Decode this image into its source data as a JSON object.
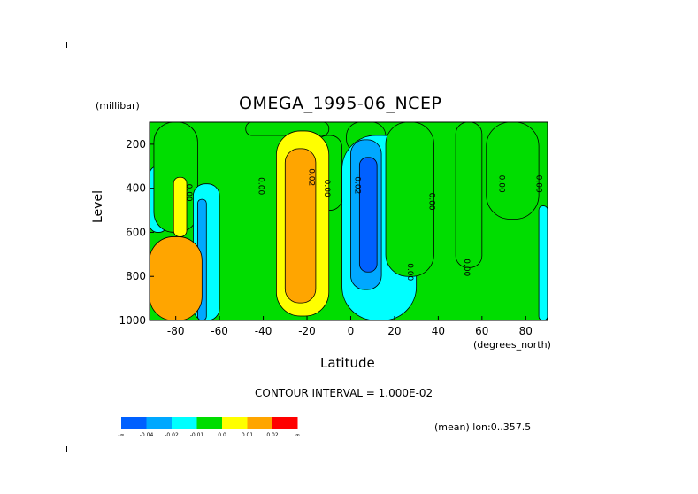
{
  "title": "OMEGA_1995-06_NCEP",
  "y_unit": "(millibar)",
  "y_label": "Level",
  "x_label": "Latitude",
  "x_unit": "(degrees_north)",
  "contour_interval": "CONTOUR INTERVAL = 1.000E-02",
  "mean_note": "(mean) lon:0..357.5",
  "colorbar": {
    "colors": [
      "#0060ff",
      "#00a8ff",
      "#00ffff",
      "#00dd00",
      "#ffff00",
      "#ffa500",
      "#ff0000"
    ],
    "labels": [
      "-∞",
      "-0.04",
      "-0.02",
      "-0.01",
      "0.0",
      "0.01",
      "0.02",
      "∞"
    ]
  },
  "chart_data": {
    "type": "heatmap",
    "title": "OMEGA_1995-06_NCEP",
    "xlabel": "Latitude",
    "ylabel": "Level",
    "xlim": [
      -92,
      90
    ],
    "ylim": [
      1000,
      100
    ],
    "x_ticks": [
      -80,
      -60,
      -40,
      -20,
      0,
      20,
      40,
      60,
      80
    ],
    "y_ticks": [
      200,
      400,
      600,
      800,
      1000
    ],
    "background_level": "0.0",
    "regions": [
      {
        "level": "-0.01",
        "x": [
          -92,
          -84
        ],
        "y": [
          300,
          600
        ]
      },
      {
        "level": "0.0",
        "x": [
          -90,
          -70
        ],
        "y": [
          100,
          600
        ]
      },
      {
        "level": "0.01",
        "x": [
          -81,
          -75
        ],
        "y": [
          350,
          620
        ]
      },
      {
        "level": "-0.01",
        "x": [
          -72,
          -60
        ],
        "y": [
          380,
          1000
        ]
      },
      {
        "level": "-0.02",
        "x": [
          -70,
          -66
        ],
        "y": [
          450,
          1000
        ]
      },
      {
        "level": "0.0",
        "x": [
          -48,
          -10
        ],
        "y": [
          100,
          160
        ]
      },
      {
        "level": "0.0",
        "x": [
          -16,
          -4
        ],
        "y": [
          160,
          500
        ]
      },
      {
        "level": "0.01",
        "x": [
          -34,
          -10
        ],
        "y": [
          140,
          980
        ]
      },
      {
        "level": "0.02",
        "x": [
          -30,
          -16
        ],
        "y": [
          220,
          920
        ]
      },
      {
        "level": "0.0",
        "x": [
          -2,
          16
        ],
        "y": [
          100,
          240
        ]
      },
      {
        "level": "-0.01",
        "x": [
          -4,
          30
        ],
        "y": [
          160,
          1000
        ]
      },
      {
        "level": "-0.02",
        "x": [
          0,
          14
        ],
        "y": [
          180,
          860
        ]
      },
      {
        "level": "-0.04",
        "x": [
          4,
          12
        ],
        "y": [
          260,
          780
        ]
      },
      {
        "level": "0.0",
        "x": [
          16,
          38
        ],
        "y": [
          100,
          800
        ]
      },
      {
        "level": "0.0",
        "x": [
          48,
          60
        ],
        "y": [
          100,
          760
        ]
      },
      {
        "level": "0.0",
        "x": [
          62,
          86
        ],
        "y": [
          100,
          540
        ]
      },
      {
        "level": "-0.01",
        "x": [
          86,
          90
        ],
        "y": [
          480,
          1000
        ]
      },
      {
        "level": "0.02",
        "x": [
          -92,
          -68
        ],
        "y": [
          620,
          1000
        ]
      }
    ],
    "contour_labels": [
      {
        "text": "0.00",
        "x": -75,
        "y": 420
      },
      {
        "text": "0.00",
        "x": -42,
        "y": 390
      },
      {
        "text": "0.02",
        "x": -19,
        "y": 350
      },
      {
        "text": "0.00",
        "x": -12,
        "y": 400
      },
      {
        "text": "-0.02",
        "x": 2,
        "y": 380
      },
      {
        "text": "0.00",
        "x": 26,
        "y": 780
      },
      {
        "text": "0.00",
        "x": 36,
        "y": 460
      },
      {
        "text": "0.00",
        "x": 52,
        "y": 760
      },
      {
        "text": "0.00",
        "x": 68,
        "y": 380
      },
      {
        "text": "0.00",
        "x": 85,
        "y": 380
      }
    ]
  }
}
